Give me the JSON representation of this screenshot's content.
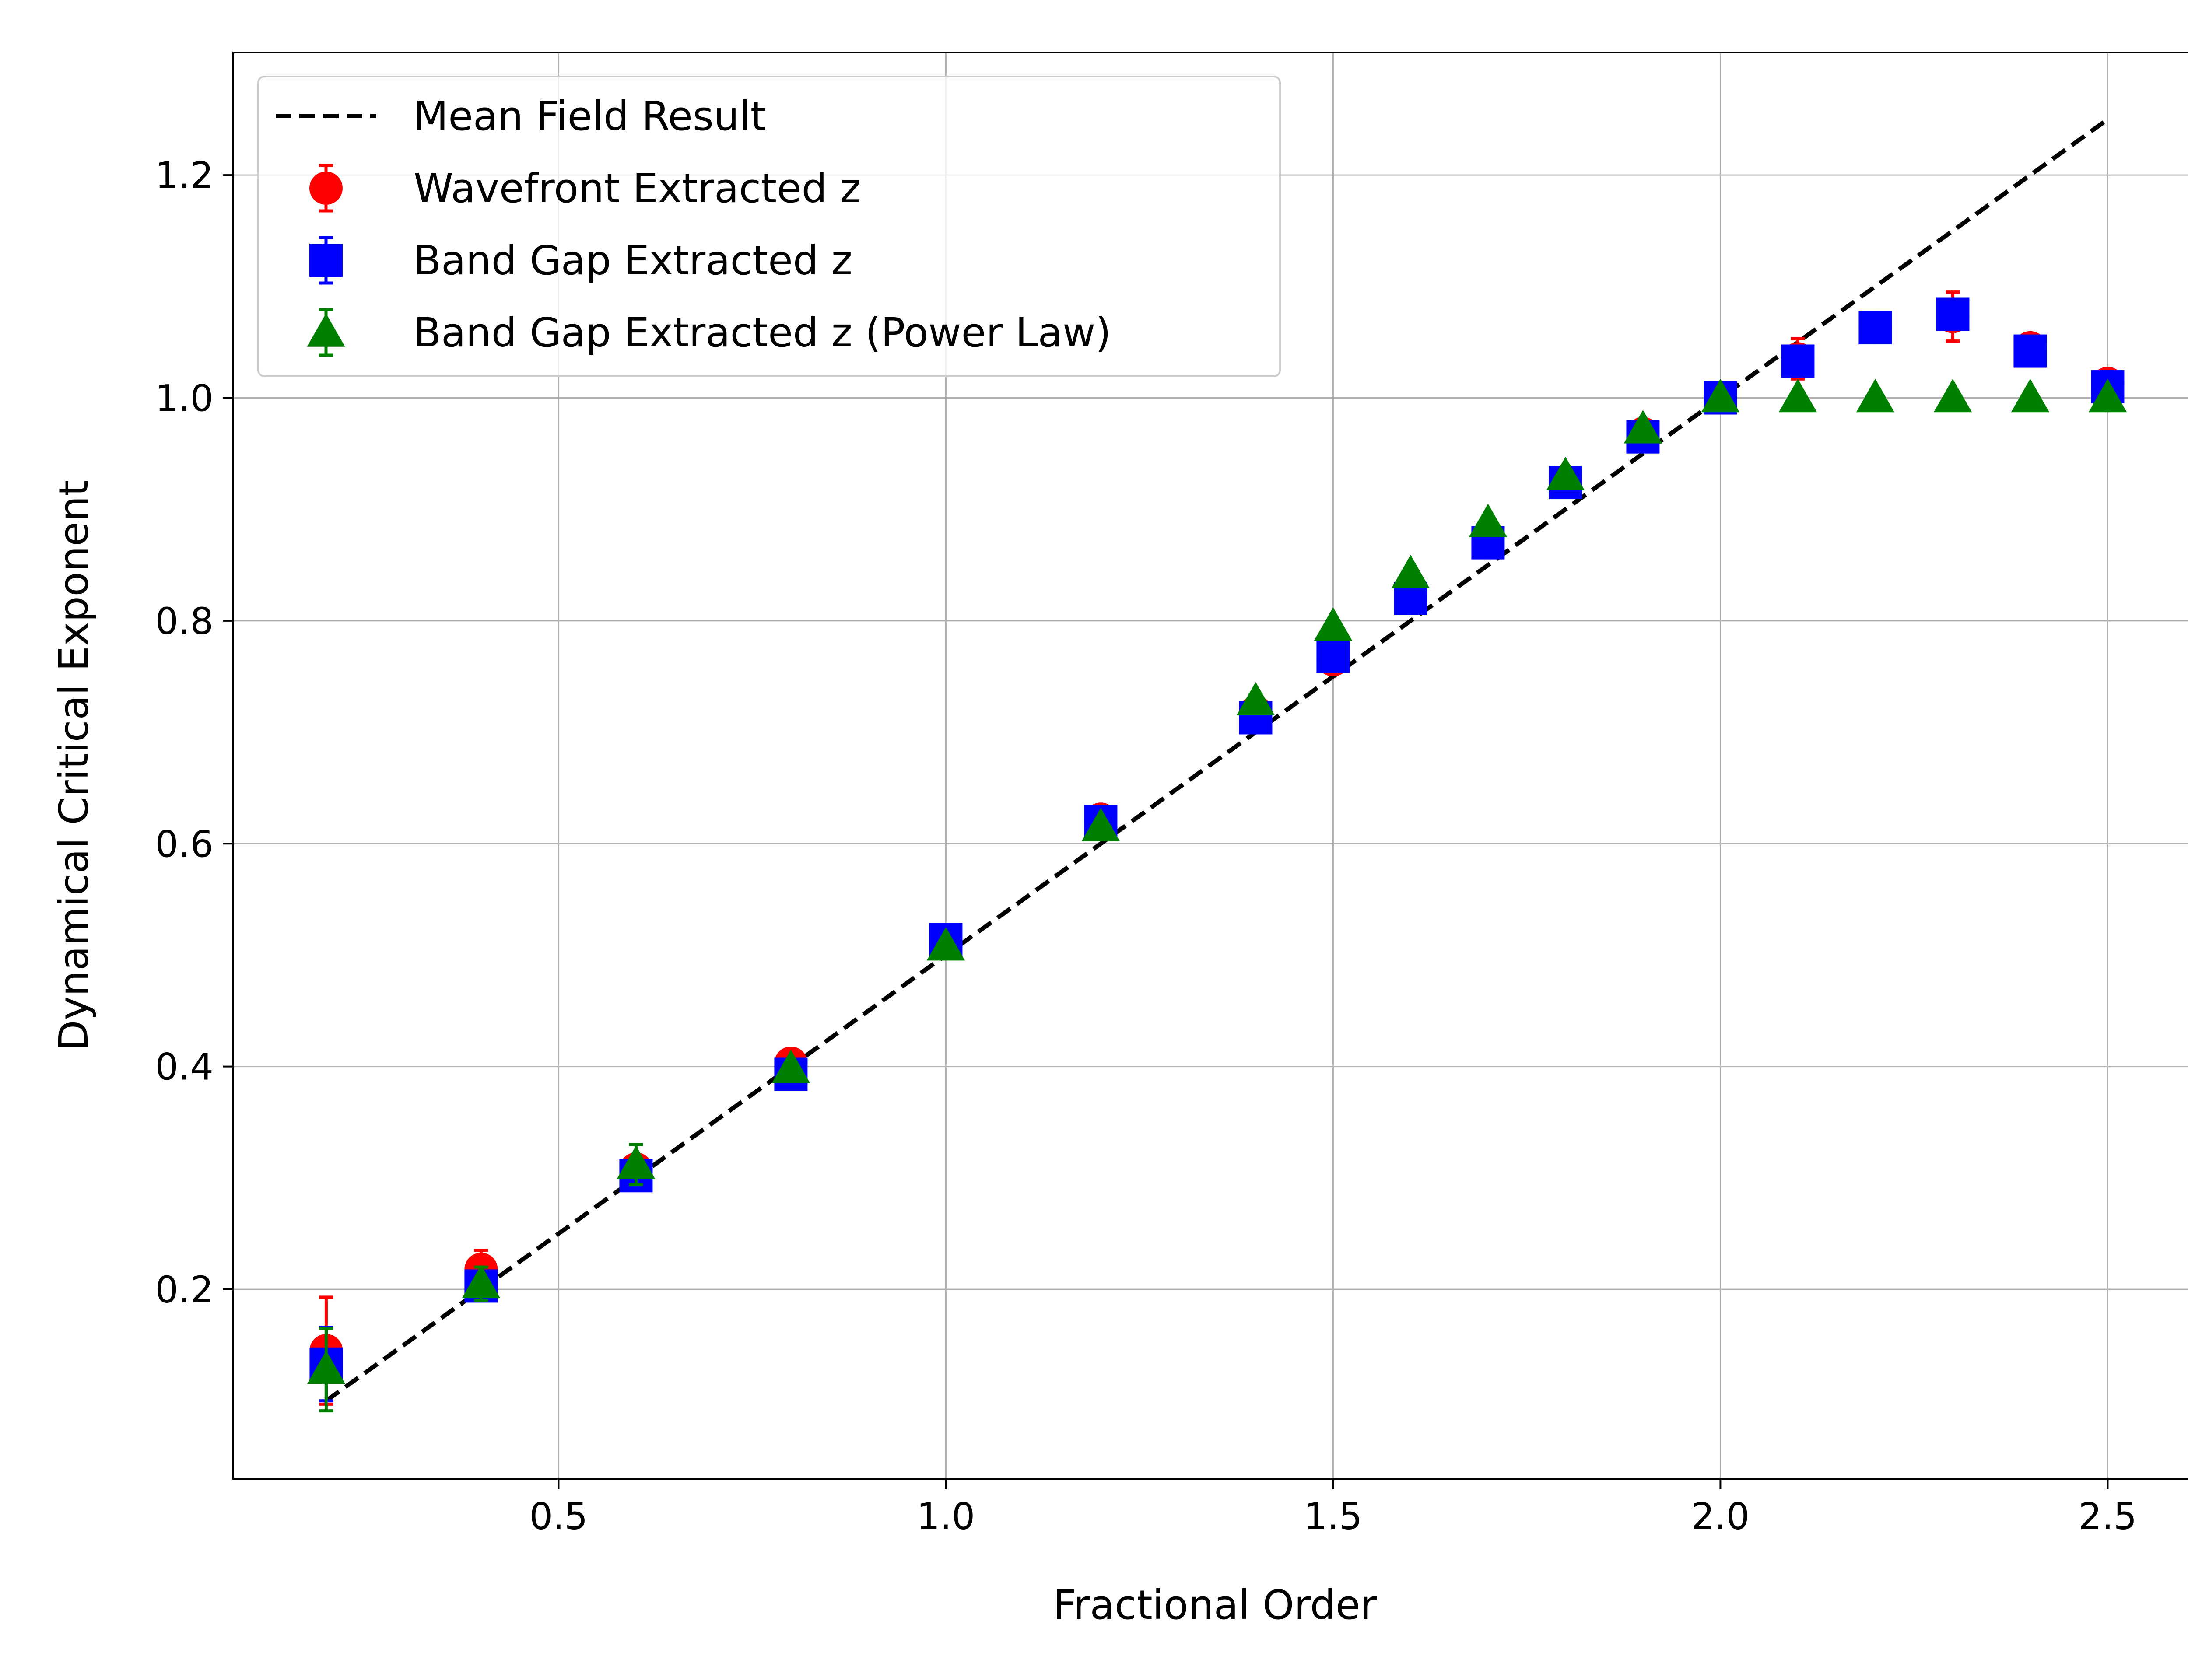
{
  "chart_data": {
    "type": "scatter",
    "title": "",
    "xlabel": "Fractional Order",
    "ylabel": "Dynamical Critical Exponent",
    "xlim": [
      0.08,
      2.615
    ],
    "ylim": [
      0.03,
      1.31
    ],
    "xticks": [
      0.5,
      1.0,
      1.5,
      2.0,
      2.5
    ],
    "xtick_labels": [
      "0.5",
      "1.0",
      "1.5",
      "2.0",
      "2.5"
    ],
    "yticks": [
      0.2,
      0.4,
      0.6,
      0.8,
      1.0,
      1.2
    ],
    "ytick_labels": [
      "0.2",
      "0.4",
      "0.6",
      "0.8",
      "1.0",
      "1.2"
    ],
    "grid": true,
    "legend_position": "top-left",
    "mean_field": {
      "name": "Mean Field Result",
      "color": "#000000",
      "style": "dashed",
      "x": [
        0.2,
        2.5
      ],
      "y": [
        0.1,
        1.25
      ]
    },
    "series": [
      {
        "name": "Wavefront Extracted z",
        "marker": "circle",
        "color": "#ff0000",
        "x": [
          0.2,
          0.4,
          0.6,
          0.8,
          1.0,
          1.2,
          1.4,
          1.5,
          1.6,
          1.7,
          1.8,
          1.9,
          2.0,
          2.1,
          2.2,
          2.3,
          2.4,
          2.5
        ],
        "y": [
          0.145,
          0.218,
          0.308,
          0.403,
          0.512,
          0.622,
          0.718,
          0.765,
          0.82,
          0.87,
          0.925,
          0.968,
          1.0,
          1.035,
          1.063,
          1.073,
          1.045,
          1.013
        ],
        "err": [
          0.048,
          0.017,
          0.012,
          0.005,
          0.005,
          0.005,
          0.008,
          0.005,
          0.005,
          0.005,
          0.007,
          0.005,
          0.003,
          0.018,
          0.01,
          0.022,
          0.006,
          0.008
        ]
      },
      {
        "name": "Band Gap Extracted z",
        "marker": "square",
        "color": "#0000ff",
        "x": [
          0.2,
          0.4,
          0.6,
          0.8,
          1.0,
          1.2,
          1.4,
          1.5,
          1.6,
          1.7,
          1.8,
          1.9,
          2.0,
          2.1,
          2.2,
          2.3,
          2.4,
          2.5
        ],
        "y": [
          0.133,
          0.203,
          0.302,
          0.393,
          0.514,
          0.62,
          0.713,
          0.768,
          0.82,
          0.87,
          0.924,
          0.965,
          1.0,
          1.033,
          1.063,
          1.075,
          1.042,
          1.01
        ],
        "err": [
          0.033,
          0.012,
          0.01,
          0.006,
          0.005,
          0.005,
          0.007,
          0.005,
          0.005,
          0.005,
          0.006,
          0.006,
          0.004,
          0.012,
          0.01,
          0.012,
          0.006,
          0.006
        ]
      },
      {
        "name": "Band Gap Extracted z (Power Law)",
        "marker": "triangle",
        "color": "#008000",
        "x": [
          0.2,
          0.4,
          0.6,
          0.8,
          1.0,
          1.2,
          1.4,
          1.5,
          1.6,
          1.7,
          1.8,
          1.9,
          2.0,
          2.1,
          2.2,
          2.3,
          2.4,
          2.5
        ],
        "y": [
          0.128,
          0.205,
          0.312,
          0.398,
          0.508,
          0.615,
          0.728,
          0.795,
          0.842,
          0.888,
          0.93,
          0.972,
          1.0,
          1.0,
          1.0,
          1.0,
          1.0,
          1.0
        ],
        "err": [
          0.037,
          0.015,
          0.018,
          0.006,
          0.005,
          0.005,
          0.006,
          0.005,
          0.005,
          0.005,
          0.005,
          0.005,
          0.003,
          0.003,
          0.003,
          0.003,
          0.003,
          0.003
        ]
      }
    ]
  }
}
